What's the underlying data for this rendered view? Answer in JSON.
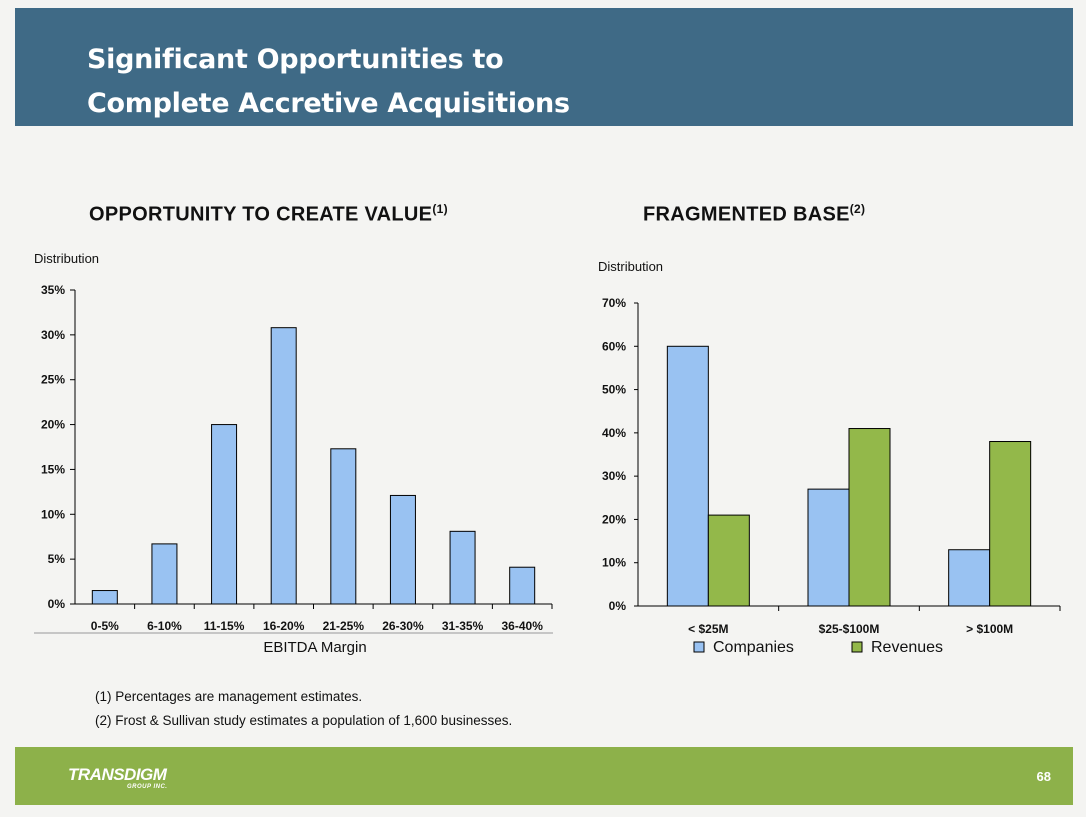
{
  "slide": {
    "title_line1": "Significant Opportunities to",
    "title_line2": "Complete Accretive Acquisitions",
    "page_number": "68",
    "logo_text": "TRANSDIGM",
    "logo_subtext": "GROUP INC."
  },
  "left_section": {
    "heading": "OPPORTUNITY TO CREATE VALUE",
    "heading_note": "(1)",
    "dist_label": "Distribution"
  },
  "right_section": {
    "heading": "FRAGMENTED BASE",
    "heading_note": "(2)",
    "dist_label": "Distribution"
  },
  "footnotes": [
    "(1)  Percentages are management  estimates.",
    "(2)  Frost & Sullivan  study estimates a population of 1,600 businesses."
  ],
  "colors": {
    "banner": "#3f6a86",
    "footer": "#8db14a",
    "companies": "#99c2f2",
    "revenues": "#93b84a"
  },
  "chart_data": [
    {
      "type": "bar",
      "title": "OPPORTUNITY TO CREATE VALUE",
      "xlabel": "EBITDA Margin",
      "ylabel": "Distribution",
      "categories": [
        "0-5%",
        "6-10%",
        "11-15%",
        "16-20%",
        "21-25%",
        "26-30%",
        "31-35%",
        "36-40%"
      ],
      "values": [
        1.5,
        6.7,
        20,
        30.8,
        17.3,
        12.1,
        8.1,
        4.1
      ],
      "ylim": [
        0,
        35
      ],
      "yticks": [
        "0%",
        "5%",
        "10%",
        "15%",
        "20%",
        "25%",
        "30%",
        "35%"
      ],
      "grid": false
    },
    {
      "type": "bar",
      "title": "FRAGMENTED BASE",
      "xlabel": "",
      "ylabel": "Distribution",
      "categories": [
        "< $25M",
        "$25-$100M",
        "> $100M"
      ],
      "series": [
        {
          "name": "Companies",
          "values": [
            60,
            27,
            13
          ]
        },
        {
          "name": "Revenues",
          "values": [
            21,
            41,
            38
          ]
        }
      ],
      "ylim": [
        0,
        70
      ],
      "yticks": [
        "0%",
        "10%",
        "20%",
        "30%",
        "40%",
        "50%",
        "60%",
        "70%"
      ],
      "legend": "bottom",
      "grid": false
    }
  ]
}
